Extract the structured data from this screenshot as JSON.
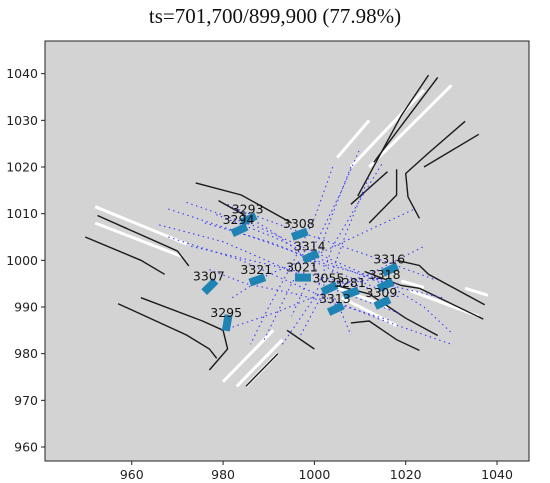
{
  "title": "ts=701,700/899,900 (77.98%)",
  "chart_data": {
    "type": "scatter",
    "title": "ts=701,700/899,900 (77.98%)",
    "xlim": [
      941,
      1047
    ],
    "ylim": [
      957,
      1047
    ],
    "x_ticks": [
      960,
      980,
      1000,
      1020,
      1040
    ],
    "y_ticks": [
      960,
      970,
      980,
      990,
      1000,
      1010,
      1020,
      1030,
      1040
    ],
    "background": "#d3d3d3",
    "colors": {
      "curb": "#1a1a1a",
      "lane": "#ffffff",
      "route": "#3a3aff",
      "vehicle": "#1f84b4"
    },
    "curbs": [
      [
        [
          952.5,
          1009.6
        ],
        [
          970,
          1002
        ],
        [
          972.5,
          998.8
        ]
      ],
      [
        [
          949.8,
          1005
        ],
        [
          962,
          1000
        ],
        [
          967.2,
          997
        ]
      ],
      [
        [
          962,
          992
        ],
        [
          975.5,
          987
        ],
        [
          980,
          985
        ],
        [
          981,
          981
        ],
        [
          977,
          976.5
        ]
      ],
      [
        [
          957,
          990.7
        ],
        [
          972,
          984
        ],
        [
          977,
          981
        ],
        [
          978.6,
          979
        ]
      ],
      [
        [
          985,
          973
        ],
        [
          992,
          980
        ]
      ],
      [
        [
          994,
          985
        ],
        [
          1000,
          981
        ]
      ],
      [
        [
          1004,
          994.8
        ],
        [
          1012,
          992.8
        ],
        [
          1020,
          987.6
        ],
        [
          1027,
          983.9
        ]
      ],
      [
        [
          1008,
          986.6
        ],
        [
          1012,
          987
        ],
        [
          1018,
          983
        ],
        [
          1023,
          980.7
        ]
      ],
      [
        [
          1011,
          997.6
        ],
        [
          1019,
          994.6
        ],
        [
          1023,
          994
        ],
        [
          1030,
          990.7
        ],
        [
          1037,
          987.4
        ]
      ],
      [
        [
          1037.3,
          990.5
        ],
        [
          1025,
          997
        ],
        [
          1023,
          998.9
        ],
        [
          1018,
          1000
        ]
      ],
      [
        [
          1023,
          1009
        ],
        [
          1020.5,
          1013.6
        ],
        [
          1020,
          1018.6
        ],
        [
          1025,
          1023
        ],
        [
          1033,
          1029.8
        ]
      ],
      [
        [
          1036,
          1027
        ],
        [
          1024,
          1020
        ]
      ],
      [
        [
          1012,
          1008
        ],
        [
          1018,
          1014
        ],
        [
          1018,
          1019.5
        ]
      ],
      [
        [
          1013,
          1021
        ],
        [
          1027,
          1039.2
        ]
      ],
      [
        [
          1009.5,
          1013.8
        ],
        [
          1019,
          1031
        ],
        [
          1025,
          1039.7
        ]
      ],
      [
        [
          1008,
          1012
        ],
        [
          1016,
          1019
        ]
      ],
      [
        [
          974,
          1016.6
        ],
        [
          984,
          1014
        ],
        [
          995,
          1008
        ]
      ],
      [
        [
          979,
          1012.8
        ],
        [
          985,
          1009.5
        ]
      ]
    ],
    "lane_markings": [
      [
        [
          952,
          1011.5
        ],
        [
          972,
          1003.5
        ]
      ],
      [
        [
          952,
          1008
        ],
        [
          971,
          1000.8
        ]
      ],
      [
        [
          1008,
          1020
        ],
        [
          1024,
          1036.5
        ]
      ],
      [
        [
          1012,
          1020
        ],
        [
          1030,
          1037.5
        ]
      ],
      [
        [
          1005,
          1022
        ],
        [
          1012,
          1030
        ]
      ],
      [
        [
          1033,
          994
        ],
        [
          1038,
          992.5
        ]
      ],
      [
        [
          1021,
          993.5
        ],
        [
          1036,
          988
        ]
      ],
      [
        [
          980,
          974
        ],
        [
          991,
          985
        ]
      ],
      [
        [
          983,
          973
        ],
        [
          993,
          983
        ]
      ],
      [
        [
          985,
          973
        ],
        [
          992,
          980
        ]
      ],
      [
        [
          1004,
          994.5
        ],
        [
          1016,
          990
        ]
      ],
      [
        [
          1006,
          992
        ],
        [
          1018,
          986
        ]
      ],
      [
        [
          1019,
          995.6
        ],
        [
          1024,
          994.2
        ]
      ]
    ],
    "routes": [
      [
        [
          968,
          1011
        ],
        [
          982,
          1006.5
        ],
        [
          995,
          1002
        ],
        [
          1006,
          997
        ],
        [
          1019,
          992
        ]
      ],
      [
        [
          966,
          1007.6
        ],
        [
          980,
          1004
        ],
        [
          993,
          998.5
        ],
        [
          1005,
          993.5
        ],
        [
          1019,
          988.5
        ]
      ],
      [
        [
          968,
          1005
        ],
        [
          984,
          1000
        ],
        [
          1000,
          993
        ],
        [
          1014,
          987.5
        ],
        [
          1030,
          982
        ]
      ],
      [
        [
          972,
          1012.4
        ],
        [
          988,
          1007
        ],
        [
          1004,
          1000
        ],
        [
          1018,
          994
        ]
      ],
      [
        [
          976,
          1008
        ],
        [
          990,
          1004
        ],
        [
          1003,
          999
        ],
        [
          1018,
          995
        ]
      ],
      [
        [
          982,
          992
        ],
        [
          990,
          997
        ],
        [
          1000,
          1001
        ],
        [
          1013,
          1007
        ],
        [
          1022,
          1011
        ]
      ],
      [
        [
          980,
          985
        ],
        [
          992,
          989
        ],
        [
          1002,
          993
        ],
        [
          1014,
          998
        ],
        [
          1024,
          1003
        ]
      ],
      [
        [
          989,
          983
        ],
        [
          995,
          995
        ],
        [
          1001,
          1005
        ],
        [
          1006,
          1015
        ],
        [
          1010,
          1024
        ]
      ],
      [
        [
          993,
          982
        ],
        [
          1000,
          992
        ],
        [
          1004,
          1003
        ],
        [
          1010,
          1013
        ],
        [
          1015,
          1021
        ]
      ],
      [
        [
          997,
          984
        ],
        [
          1003,
          995
        ],
        [
          1007,
          1006
        ],
        [
          1012,
          1018
        ]
      ],
      [
        [
          977,
          998
        ],
        [
          985,
          995
        ],
        [
          995,
          993
        ],
        [
          1007,
          990
        ],
        [
          1017,
          987
        ]
      ],
      [
        [
          973,
          1003
        ],
        [
          986,
          1000
        ],
        [
          999,
          997
        ],
        [
          1012,
          994
        ]
      ],
      [
        [
          1028,
          992
        ],
        [
          1015,
          995
        ],
        [
          1002,
          1000
        ],
        [
          991,
          1005
        ],
        [
          978,
          1010
        ]
      ],
      [
        [
          1026,
          996
        ],
        [
          1012,
          1001
        ],
        [
          997,
          1006
        ],
        [
          983,
          1011
        ]
      ],
      [
        [
          1004,
          1020
        ],
        [
          1000,
          1009
        ],
        [
          995,
          999
        ],
        [
          990,
          990
        ],
        [
          986,
          982
        ]
      ],
      [
        [
          1008,
          1020
        ],
        [
          1004,
          1010
        ],
        [
          1000,
          999
        ],
        [
          995,
          988
        ]
      ],
      [
        [
          1005,
          995
        ],
        [
          1014,
          996
        ],
        [
          1024,
          990
        ],
        [
          1030,
          984.5
        ]
      ],
      [
        [
          981,
          1012
        ],
        [
          991,
          1006
        ],
        [
          999,
          1000
        ],
        [
          1005,
          991
        ],
        [
          1008,
          984
        ]
      ]
    ],
    "vehicles": [
      {
        "id": "3293",
        "x": 985.6,
        "y": 1008.8,
        "angle": 25
      },
      {
        "id": "3294",
        "x": 983.6,
        "y": 1006.5,
        "angle": 25
      },
      {
        "id": "3308",
        "x": 996.8,
        "y": 1005.6,
        "angle": 20
      },
      {
        "id": "3314",
        "x": 999.2,
        "y": 1000.8,
        "angle": 25
      },
      {
        "id": "3021",
        "x": 997.5,
        "y": 996.3,
        "angle": 0
      },
      {
        "id": "3321",
        "x": 987.5,
        "y": 995.8,
        "angle": 20
      },
      {
        "id": "3307",
        "x": 977.1,
        "y": 994.4,
        "angle": 45
      },
      {
        "id": "3295",
        "x": 980.9,
        "y": 986.6,
        "angle": 80
      },
      {
        "id": "3055",
        "x": 1003.3,
        "y": 994.0,
        "angle": 25
      },
      {
        "id": "3281",
        "x": 1008.0,
        "y": 993.0,
        "angle": 20
      },
      {
        "id": "3313",
        "x": 1004.7,
        "y": 989.6,
        "angle": 25
      },
      {
        "id": "3316",
        "x": 1016.6,
        "y": 998.0,
        "angle": 25
      },
      {
        "id": "3318",
        "x": 1015.6,
        "y": 994.7,
        "angle": 25
      },
      {
        "id": "3309",
        "x": 1014.9,
        "y": 990.9,
        "angle": 25
      }
    ]
  }
}
